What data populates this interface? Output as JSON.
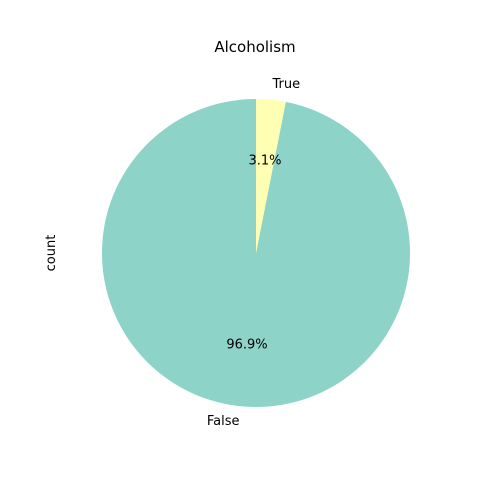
{
  "chart_data": {
    "type": "pie",
    "title": "Alcoholism",
    "ylabel": "count",
    "start_angle_deg": 90,
    "direction": "counterclockwise",
    "slices": [
      {
        "label": "False",
        "percent": 96.9,
        "color": "#8dd3c7"
      },
      {
        "label": "True",
        "percent": 3.1,
        "color": "#ffffb3"
      }
    ]
  }
}
